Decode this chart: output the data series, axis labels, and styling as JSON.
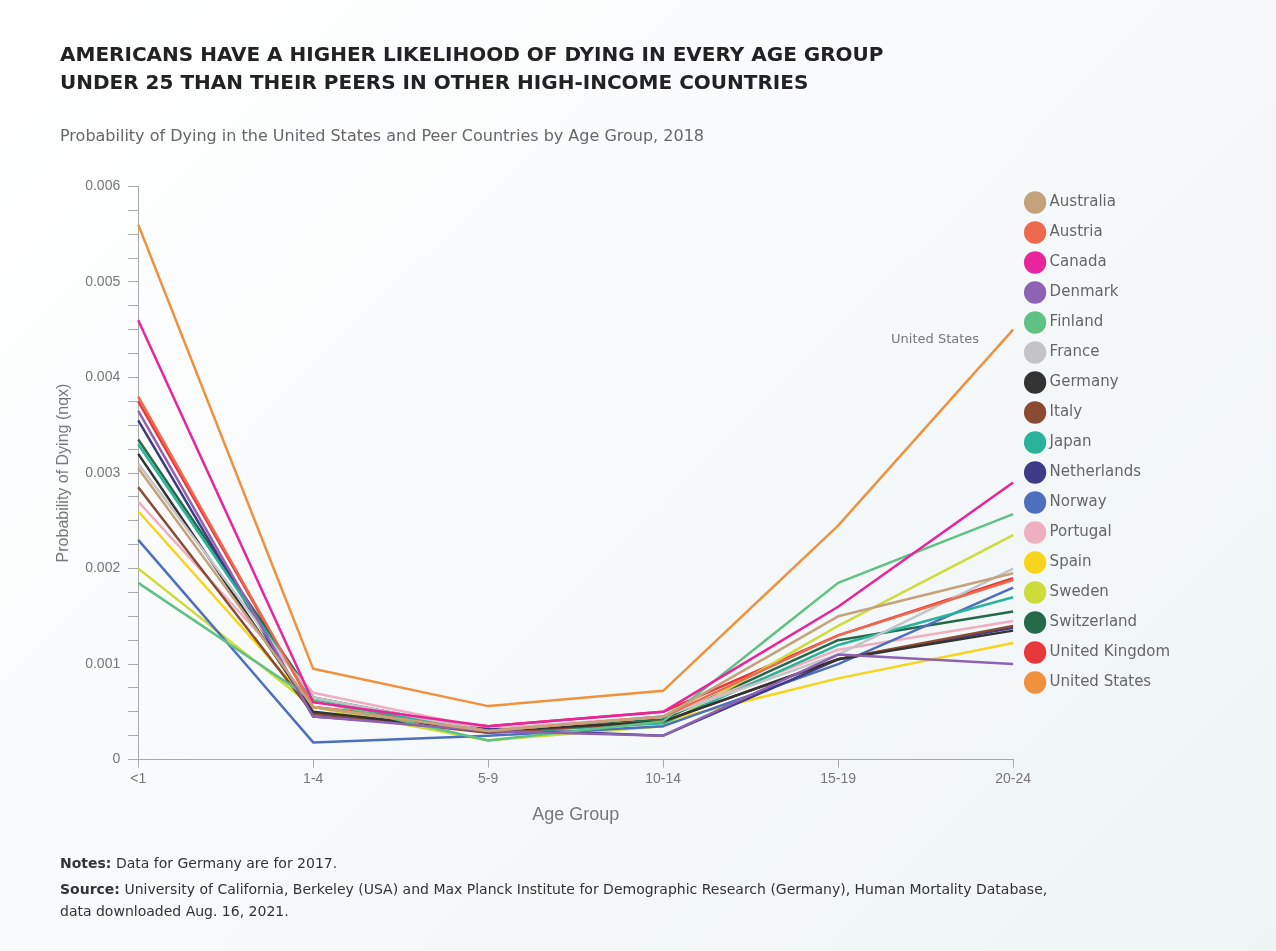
{
  "chart_data": {
    "type": "line",
    "title": "AMERICANS HAVE A HIGHER LIKELIHOOD OF DYING IN EVERY AGE GROUP UNDER 25 THAN THEIR PEERS IN OTHER HIGH-INCOME COUNTRIES",
    "subtitle": "Probability of Dying in the United States and Peer Countries by Age Group, 2018",
    "xlabel": "Age Group",
    "ylabel": "Probability of Dying (nqx)",
    "categories": [
      "<1",
      "1-4",
      "5-9",
      "10-14",
      "15-19",
      "20-24"
    ],
    "series": [
      {
        "name": "Australia",
        "color": "#c4a27c",
        "values": [
          0.00305,
          0.00055,
          0.0003,
          0.00045,
          0.0015,
          0.00195
        ]
      },
      {
        "name": "Austria",
        "color": "#ee6a4f",
        "values": [
          0.0038,
          0.00055,
          0.0003,
          0.00045,
          0.0013,
          0.00188
        ]
      },
      {
        "name": "Canada",
        "color": "#e8259a",
        "values": [
          0.0046,
          0.0006,
          0.00035,
          0.0005,
          0.0016,
          0.0029
        ]
      },
      {
        "name": "Denmark",
        "color": "#8e63b3",
        "values": [
          0.00365,
          0.00045,
          0.0003,
          0.00025,
          0.0011,
          0.001
        ]
      },
      {
        "name": "Finland",
        "color": "#5fc183",
        "values": [
          0.00185,
          0.00062,
          0.0002,
          0.0004,
          0.00185,
          0.00257
        ]
      },
      {
        "name": "France",
        "color": "#c4c4c6",
        "values": [
          0.0031,
          0.00065,
          0.0003,
          0.00045,
          0.0011,
          0.002
        ]
      },
      {
        "name": "Germany",
        "color": "#333333",
        "values": [
          0.0032,
          0.0005,
          0.0003,
          0.0004,
          0.00105,
          0.00135
        ]
      },
      {
        "name": "Italy",
        "color": "#8b4a32",
        "values": [
          0.00285,
          0.00048,
          0.00028,
          0.0004,
          0.00105,
          0.0014
        ]
      },
      {
        "name": "Japan",
        "color": "#2bb39a",
        "values": [
          0.0033,
          0.00062,
          0.00028,
          0.00038,
          0.0012,
          0.0017
        ]
      },
      {
        "name": "Netherlands",
        "color": "#3f3a85",
        "values": [
          0.00355,
          0.00045,
          0.00032,
          0.00025,
          0.00105,
          0.00138
        ]
      },
      {
        "name": "Norway",
        "color": "#4e6fbe",
        "values": [
          0.0023,
          0.00018,
          0.00025,
          0.00035,
          0.001,
          0.0018
        ]
      },
      {
        "name": "Portugal",
        "color": "#f0afc0",
        "values": [
          0.0027,
          0.0007,
          0.00032,
          0.00045,
          0.00115,
          0.00145
        ]
      },
      {
        "name": "Spain",
        "color": "#f7d51c",
        "values": [
          0.0026,
          0.00055,
          0.0003,
          0.0004,
          0.00085,
          0.00122
        ]
      },
      {
        "name": "Sweden",
        "color": "#cddc39",
        "values": [
          0.002,
          0.00055,
          0.0002,
          0.00035,
          0.0014,
          0.00235
        ]
      },
      {
        "name": "Switzerland",
        "color": "#24694a",
        "values": [
          0.00335,
          0.00065,
          0.0003,
          0.00042,
          0.00125,
          0.00155
        ]
      },
      {
        "name": "United Kingdom",
        "color": "#e8383a",
        "values": [
          0.00375,
          0.00055,
          0.00035,
          0.0005,
          0.0013,
          0.0019
        ]
      },
      {
        "name": "United States",
        "color": "#f0913e",
        "values": [
          0.0056,
          0.00095,
          0.00056,
          0.00072,
          0.00245,
          0.0045
        ]
      }
    ],
    "ylim": [
      0,
      0.006
    ],
    "yticks": [
      0,
      {
        "value": 0.00025,
        "label": null
      },
      {
        "value": 0.0005,
        "label": null
      },
      {
        "value": 0.00075,
        "label": null
      },
      0.001,
      {
        "value": 0.00125,
        "label": null
      },
      {
        "value": 0.0015,
        "label": null
      },
      {
        "value": 0.00175,
        "label": null
      },
      0.002,
      {
        "value": 0.00225,
        "label": null
      },
      {
        "value": 0.0025,
        "label": null
      },
      {
        "value": 0.00275,
        "label": null
      },
      0.003,
      {
        "value": 0.00325,
        "label": null
      },
      {
        "value": 0.0035,
        "label": null
      },
      {
        "value": 0.00375,
        "label": null
      },
      0.004,
      {
        "value": 0.00425,
        "label": null
      },
      {
        "value": 0.0045,
        "label": null
      },
      {
        "value": 0.00475,
        "label": null
      },
      0.005,
      {
        "value": 0.00525,
        "label": null
      },
      {
        "value": 0.0055,
        "label": null
      },
      {
        "value": 0.00575,
        "label": null
      },
      0.006
    ],
    "grid": false,
    "legend": "right",
    "marker": "none",
    "line_style": "solid",
    "annotations": [
      {
        "text": "United States",
        "x": "20-24",
        "y": 0.0045
      },
      "Notes: Data for Germany are for 2017.",
      "Source: University of California, Berkeley (USA) and Max Planck Institute for Demographic Research (Germany), Human Mortality Database, data downloaded Aug. 16, 2021."
    ]
  }
}
